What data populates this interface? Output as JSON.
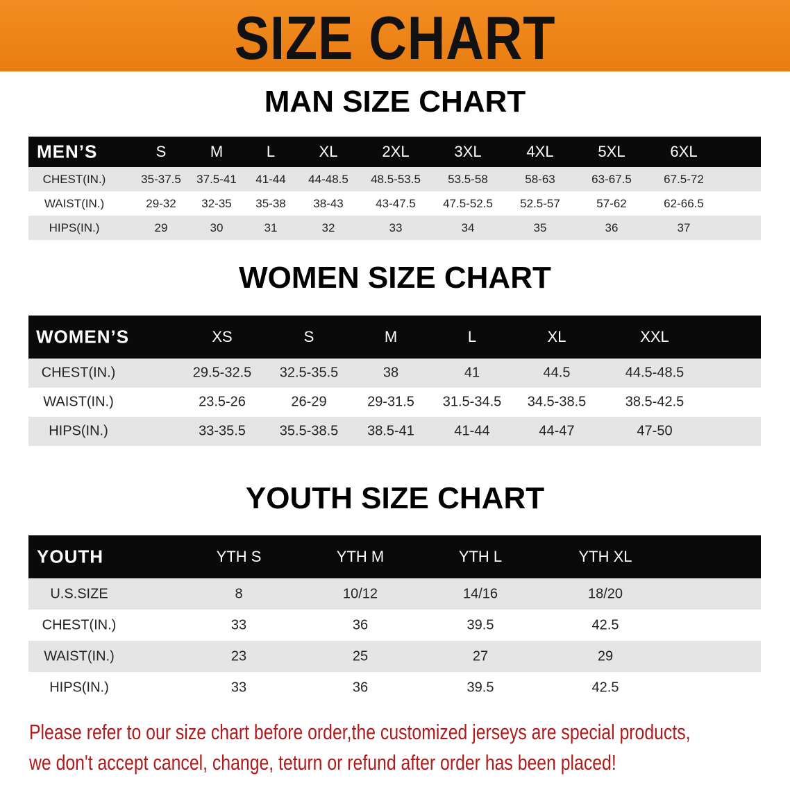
{
  "banner": {
    "title": "SIZE CHART",
    "color": "#ee8418"
  },
  "men": {
    "title": "MAN SIZE CHART",
    "header": [
      "MEN’S",
      "S",
      "M",
      "L",
      "XL",
      "2XL",
      "3XL",
      "4XL",
      "5XL",
      "6XL"
    ],
    "rows": [
      [
        "CHEST(IN.)",
        "35-37.5",
        "37.5-41",
        "41-44",
        "44-48.5",
        "48.5-53.5",
        "53.5-58",
        "58-63",
        "63-67.5",
        "67.5-72"
      ],
      [
        "WAIST(IN.)",
        "29-32",
        "32-35",
        "35-38",
        "38-43",
        "43-47.5",
        "47.5-52.5",
        "52.5-57",
        "57-62",
        "62-66.5"
      ],
      [
        "HIPS(IN.)",
        "29",
        "30",
        "31",
        "32",
        "33",
        "34",
        "35",
        "36",
        "37"
      ]
    ]
  },
  "women": {
    "title": "WOMEN SIZE CHART",
    "header": [
      "WOMEN’S",
      "XS",
      "S",
      "M",
      "L",
      "XL",
      "XXL"
    ],
    "rows": [
      [
        "CHEST(IN.)",
        "29.5-32.5",
        "32.5-35.5",
        "38",
        "41",
        "44.5",
        "44.5-48.5"
      ],
      [
        "WAIST(IN.)",
        "23.5-26",
        "26-29",
        "29-31.5",
        "31.5-34.5",
        "34.5-38.5",
        "38.5-42.5"
      ],
      [
        "HIPS(IN.)",
        "33-35.5",
        "35.5-38.5",
        "38.5-41",
        "41-44",
        "44-47",
        "47-50"
      ]
    ]
  },
  "youth": {
    "title": "YOUTH SIZE CHART",
    "header": [
      "YOUTH",
      "YTH S",
      "YTH M",
      "YTH L",
      "YTH XL"
    ],
    "rows": [
      [
        "U.S.SIZE",
        "8",
        "10/12",
        "14/16",
        "18/20"
      ],
      [
        "CHEST(IN.)",
        "33",
        "36",
        "39.5",
        "42.5"
      ],
      [
        "WAIST(IN.)",
        "23",
        "25",
        "27",
        "29"
      ],
      [
        "HIPS(IN.)",
        "33",
        "36",
        "39.5",
        "42.5"
      ]
    ]
  },
  "notice": {
    "line1": "Please refer to our size chart before order,the customized jerseys are special products,",
    "line2": "we don't accept cancel, change, teturn or refund after order has been placed!",
    "color": "#b01a1a"
  }
}
